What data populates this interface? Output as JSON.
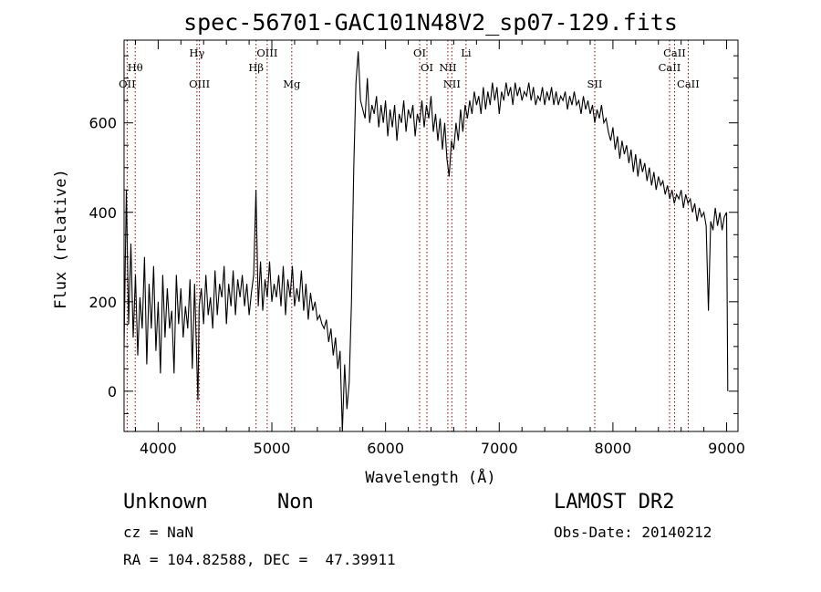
{
  "chart_data": {
    "type": "line",
    "title": "spec-56701-GAC101N48V2_sp07-129.fits",
    "xlabel": "Wavelength (Å)",
    "ylabel": "Flux (relative)",
    "xlim": [
      3700,
      9100
    ],
    "ylim": [
      -90,
      785
    ],
    "xticks": [
      4000,
      5000,
      6000,
      7000,
      8000,
      9000
    ],
    "yticks": [
      0,
      200,
      400,
      600
    ],
    "grid": false,
    "series": [
      {
        "x": [
          3700,
          3720,
          3740,
          3760,
          3780,
          3800,
          3820,
          3840,
          3860,
          3880,
          3900,
          3920,
          3940,
          3960,
          3980,
          4000,
          4020,
          4040,
          4060,
          4080,
          4100,
          4120,
          4140,
          4160,
          4180,
          4200,
          4220,
          4240,
          4260,
          4280,
          4300,
          4320,
          4340,
          4350,
          4360,
          4380,
          4400,
          4420,
          4440,
          4460,
          4480,
          4500,
          4520,
          4540,
          4560,
          4580,
          4600,
          4620,
          4640,
          4660,
          4680,
          4700,
          4720,
          4740,
          4760,
          4780,
          4800,
          4820,
          4840,
          4860,
          4880,
          4900,
          4920,
          4940,
          4960,
          4980,
          5000,
          5020,
          5040,
          5060,
          5080,
          5100,
          5120,
          5140,
          5160,
          5180,
          5200,
          5220,
          5240,
          5260,
          5280,
          5300,
          5320,
          5340,
          5360,
          5380,
          5400,
          5420,
          5440,
          5460,
          5480,
          5500,
          5520,
          5540,
          5560,
          5580,
          5600,
          5620,
          5640,
          5660,
          5680,
          5700,
          5710,
          5720,
          5740,
          5760,
          5780,
          5800,
          5820,
          5840,
          5860,
          5880,
          5900,
          5920,
          5940,
          5960,
          5980,
          6000,
          6020,
          6040,
          6060,
          6080,
          6100,
          6120,
          6140,
          6160,
          6180,
          6200,
          6220,
          6240,
          6260,
          6280,
          6300,
          6320,
          6340,
          6360,
          6380,
          6400,
          6420,
          6440,
          6460,
          6480,
          6500,
          6520,
          6540,
          6560,
          6580,
          6600,
          6620,
          6640,
          6660,
          6680,
          6700,
          6720,
          6740,
          6760,
          6780,
          6800,
          6820,
          6840,
          6860,
          6880,
          6900,
          6920,
          6940,
          6960,
          6980,
          7000,
          7020,
          7040,
          7060,
          7080,
          7100,
          7120,
          7140,
          7160,
          7180,
          7200,
          7220,
          7240,
          7260,
          7280,
          7300,
          7320,
          7340,
          7360,
          7380,
          7400,
          7420,
          7440,
          7460,
          7480,
          7500,
          7520,
          7540,
          7560,
          7580,
          7600,
          7620,
          7640,
          7660,
          7680,
          7700,
          7720,
          7740,
          7760,
          7780,
          7800,
          7820,
          7840,
          7860,
          7880,
          7900,
          7920,
          7940,
          7960,
          7980,
          8000,
          8020,
          8040,
          8060,
          8080,
          8100,
          8120,
          8140,
          8160,
          8180,
          8200,
          8220,
          8240,
          8260,
          8280,
          8300,
          8320,
          8340,
          8360,
          8380,
          8400,
          8420,
          8440,
          8460,
          8480,
          8500,
          8520,
          8540,
          8560,
          8580,
          8600,
          8620,
          8640,
          8660,
          8680,
          8700,
          8720,
          8740,
          8760,
          8780,
          8800,
          8820,
          8840,
          8860,
          8880,
          8900,
          8920,
          8940,
          8960,
          8980,
          9000,
          9010
        ],
        "y": [
          100,
          450,
          150,
          330,
          120,
          260,
          80,
          210,
          140,
          300,
          60,
          240,
          140,
          280,
          90,
          200,
          40,
          260,
          120,
          230,
          140,
          180,
          40,
          260,
          150,
          230,
          120,
          190,
          140,
          250,
          50,
          240,
          60,
          -20,
          190,
          230,
          150,
          260,
          170,
          210,
          140,
          270,
          170,
          240,
          210,
          280,
          150,
          240,
          190,
          270,
          170,
          250,
          210,
          260,
          190,
          240,
          170,
          220,
          260,
          450,
          190,
          290,
          180,
          250,
          210,
          290,
          200,
          240,
          210,
          260,
          190,
          280,
          170,
          250,
          210,
          280,
          190,
          230,
          200,
          270,
          180,
          240,
          160,
          220,
          180,
          200,
          160,
          170,
          150,
          140,
          160,
          110,
          140,
          80,
          120,
          50,
          90,
          -90,
          60,
          -40,
          20,
          200,
          350,
          500,
          690,
          760,
          650,
          630,
          610,
          700,
          600,
          640,
          620,
          660,
          590,
          640,
          600,
          650,
          570,
          630,
          590,
          640,
          560,
          620,
          600,
          650,
          580,
          630,
          610,
          640,
          570,
          620,
          600,
          650,
          590,
          640,
          610,
          660,
          580,
          620,
          560,
          610,
          540,
          600,
          520,
          480,
          560,
          540,
          600,
          560,
          630,
          580,
          640,
          610,
          650,
          620,
          670,
          640,
          660,
          620,
          680,
          630,
          670,
          640,
          690,
          650,
          680,
          620,
          670,
          650,
          690,
          660,
          680,
          640,
          690,
          660,
          680,
          650,
          670,
          660,
          690,
          650,
          680,
          640,
          660,
          650,
          680,
          640,
          670,
          650,
          680,
          640,
          670,
          640,
          660,
          650,
          670,
          630,
          660,
          640,
          670,
          640,
          650,
          620,
          660,
          630,
          650,
          620,
          640,
          600,
          630,
          610,
          640,
          600,
          610,
          580,
          560,
          590,
          540,
          570,
          520,
          560,
          530,
          550,
          510,
          540,
          490,
          530,
          480,
          520,
          490,
          510,
          470,
          500,
          460,
          490,
          450,
          480,
          460,
          470,
          440,
          460,
          430,
          450,
          420,
          440,
          430,
          450,
          410,
          440,
          420,
          430,
          400,
          420,
          380,
          410,
          390,
          400,
          370,
          180,
          380,
          360,
          410,
          370,
          400,
          360,
          390,
          400,
          0
        ]
      }
    ],
    "line_marks": [
      {
        "label": "OII",
        "x": 3727,
        "row": 3
      },
      {
        "label": "Hθ",
        "x": 3798,
        "row": 2
      },
      {
        "label": "Hγ",
        "x": 4341,
        "row": 1
      },
      {
        "label": "OIII",
        "x": 4363,
        "row": 3
      },
      {
        "label": "Hβ",
        "x": 4861,
        "row": 2
      },
      {
        "label": "OIII",
        "x": 4959,
        "row": 1
      },
      {
        "label": "Mg",
        "x": 5175,
        "row": 3
      },
      {
        "label": "OI",
        "x": 6300,
        "row": 1
      },
      {
        "label": "OI",
        "x": 6364,
        "row": 2
      },
      {
        "label": "NII",
        "x": 6548,
        "row": 2
      },
      {
        "label": "NII",
        "x": 6583,
        "row": 3
      },
      {
        "label": "Li",
        "x": 6708,
        "row": 1
      },
      {
        "label": "SII",
        "x": 7840,
        "row": 3
      },
      {
        "label": "CaII",
        "x": 8498,
        "row": 2
      },
      {
        "label": "CaII",
        "x": 8542,
        "row": 1
      },
      {
        "label": "CaII",
        "x": 8662,
        "row": 3
      }
    ],
    "colors": {
      "spectrum": "#000000",
      "line_marks": "#8b0000",
      "axes": "#000000"
    }
  },
  "info": {
    "class": "Unknown",
    "subclass": "Non",
    "survey": "LAMOST DR2",
    "cz": "cz = NaN",
    "obs_date": "Obs-Date: 20140212",
    "coords": "RA = 104.82588, DEC =  47.39911"
  }
}
